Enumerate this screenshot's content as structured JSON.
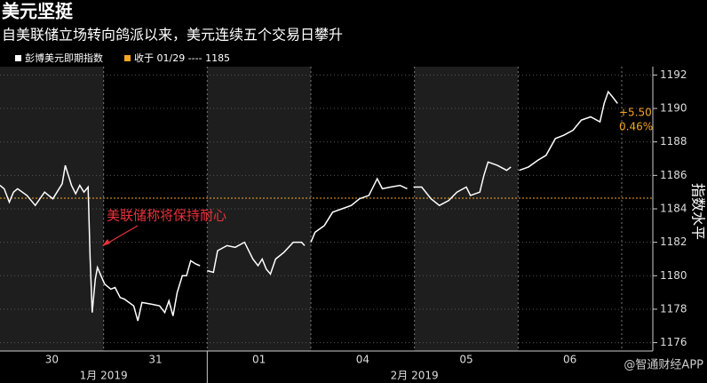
{
  "chart_data": {
    "type": "line",
    "title": "美元坚挺",
    "subtitle": "自美联储立场转向鸽派以来，美元连续五个交易日攀升",
    "y_label": "指数水平",
    "watermark": "@智通财经APP",
    "x": [
      0,
      0.04,
      0.09,
      0.13,
      0.17,
      0.26,
      0.34,
      0.43,
      0.51,
      0.6,
      0.63,
      0.69,
      0.73,
      0.77,
      0.81,
      0.85,
      0.87,
      0.89,
      0.92,
      0.94,
      1.01,
      1.07,
      1.11,
      1.16,
      1.2,
      1.29,
      1.33,
      1.37,
      1.46,
      1.54,
      1.59,
      1.63,
      1.67,
      1.71,
      1.76,
      1.8,
      1.84,
      1.89,
      1.93,
      1.97,
      2.0,
      2.06,
      2.1,
      2.19,
      2.27,
      2.36,
      2.44,
      2.49,
      2.53,
      2.57,
      2.61,
      2.66,
      2.74,
      2.83,
      2.91,
      2.94,
      2.97,
      3.0,
      3.04,
      3.13,
      3.21,
      3.3,
      3.39,
      3.47,
      3.56,
      3.64,
      3.69,
      3.77,
      3.86,
      3.93,
      3.96,
      3.99,
      4.07,
      4.16,
      4.24,
      4.33,
      4.41,
      4.5,
      4.54,
      4.63,
      4.67,
      4.71,
      4.8,
      4.89,
      4.93,
      4.97,
      5.01,
      5.1,
      5.19,
      5.27,
      5.36,
      5.44,
      5.53,
      5.61,
      5.7,
      5.79,
      5.83,
      5.87,
      5.91,
      5.96
    ],
    "series": [
      {
        "name": "彭博美元即期指数",
        "color": "#ffffff",
        "values": [
          1185.4,
          1185.2,
          1184.4,
          1185.0,
          1185.2,
          1184.8,
          1184.2,
          1185.0,
          1184.6,
          1185.5,
          1186.6,
          1185.4,
          1184.9,
          1185.4,
          1185.0,
          1185.3,
          1181.0,
          1177.8,
          1179.8,
          1180.5,
          1179.5,
          1179.2,
          1179.3,
          1178.7,
          1178.6,
          1178.2,
          1177.3,
          1178.4,
          1178.3,
          1178.2,
          1177.8,
          1178.5,
          1177.6,
          1179.0,
          1180.0,
          1180.0,
          1180.9,
          1180.7,
          1180.6,
          null,
          1180.3,
          1180.2,
          1181.5,
          1181.8,
          1181.7,
          1182.0,
          1181.0,
          1180.6,
          1181.0,
          1180.4,
          1180.1,
          1181.0,
          1181.4,
          1182.0,
          1182.0,
          1181.8,
          null,
          1182.0,
          1182.6,
          1183.0,
          1183.8,
          1184.0,
          1184.2,
          1184.6,
          1184.8,
          1185.8,
          1185.2,
          1185.3,
          1185.4,
          1185.2,
          null,
          1185.3,
          1185.3,
          1184.6,
          1184.2,
          1184.5,
          1185.0,
          1185.3,
          1184.8,
          1185.0,
          1186.0,
          1186.8,
          1186.6,
          1186.3,
          1186.5,
          null,
          1186.3,
          1186.5,
          1186.9,
          1187.2,
          1188.2,
          1188.4,
          1188.7,
          1189.3,
          1189.5,
          1189.2,
          1190.3,
          1191.0,
          1190.7,
          1190.3
        ]
      }
    ],
    "reference_line": {
      "value": 1184.64,
      "color": "#f5a623",
      "label": "收于 01/29 ---- 1185"
    },
    "annotations": [
      {
        "text": "美联储称将保持耐心",
        "color": "#e8323c"
      },
      {
        "text": "+5.50",
        "color": "#f5a623"
      },
      {
        "text": "0.46%",
        "color": "#f5a623"
      }
    ],
    "xlim": [
      0,
      6.3
    ],
    "xticks": [
      {
        "value": 0.5,
        "label": "30"
      },
      {
        "value": 1.5,
        "label": "31"
      },
      {
        "value": 2.5,
        "label": "01"
      },
      {
        "value": 3.5,
        "label": "04"
      },
      {
        "value": 4.5,
        "label": "05"
      },
      {
        "value": 5.5,
        "label": "06"
      }
    ],
    "month_ticks": [
      {
        "value": 1,
        "label": "1月 2019"
      },
      {
        "value": 4,
        "label": "2月 2019"
      }
    ],
    "ylim": [
      1175.5,
      1192.5
    ],
    "yticks": [
      1176,
      1178,
      1180,
      1182,
      1184,
      1186,
      1188,
      1190,
      1192
    ],
    "grid": true
  }
}
